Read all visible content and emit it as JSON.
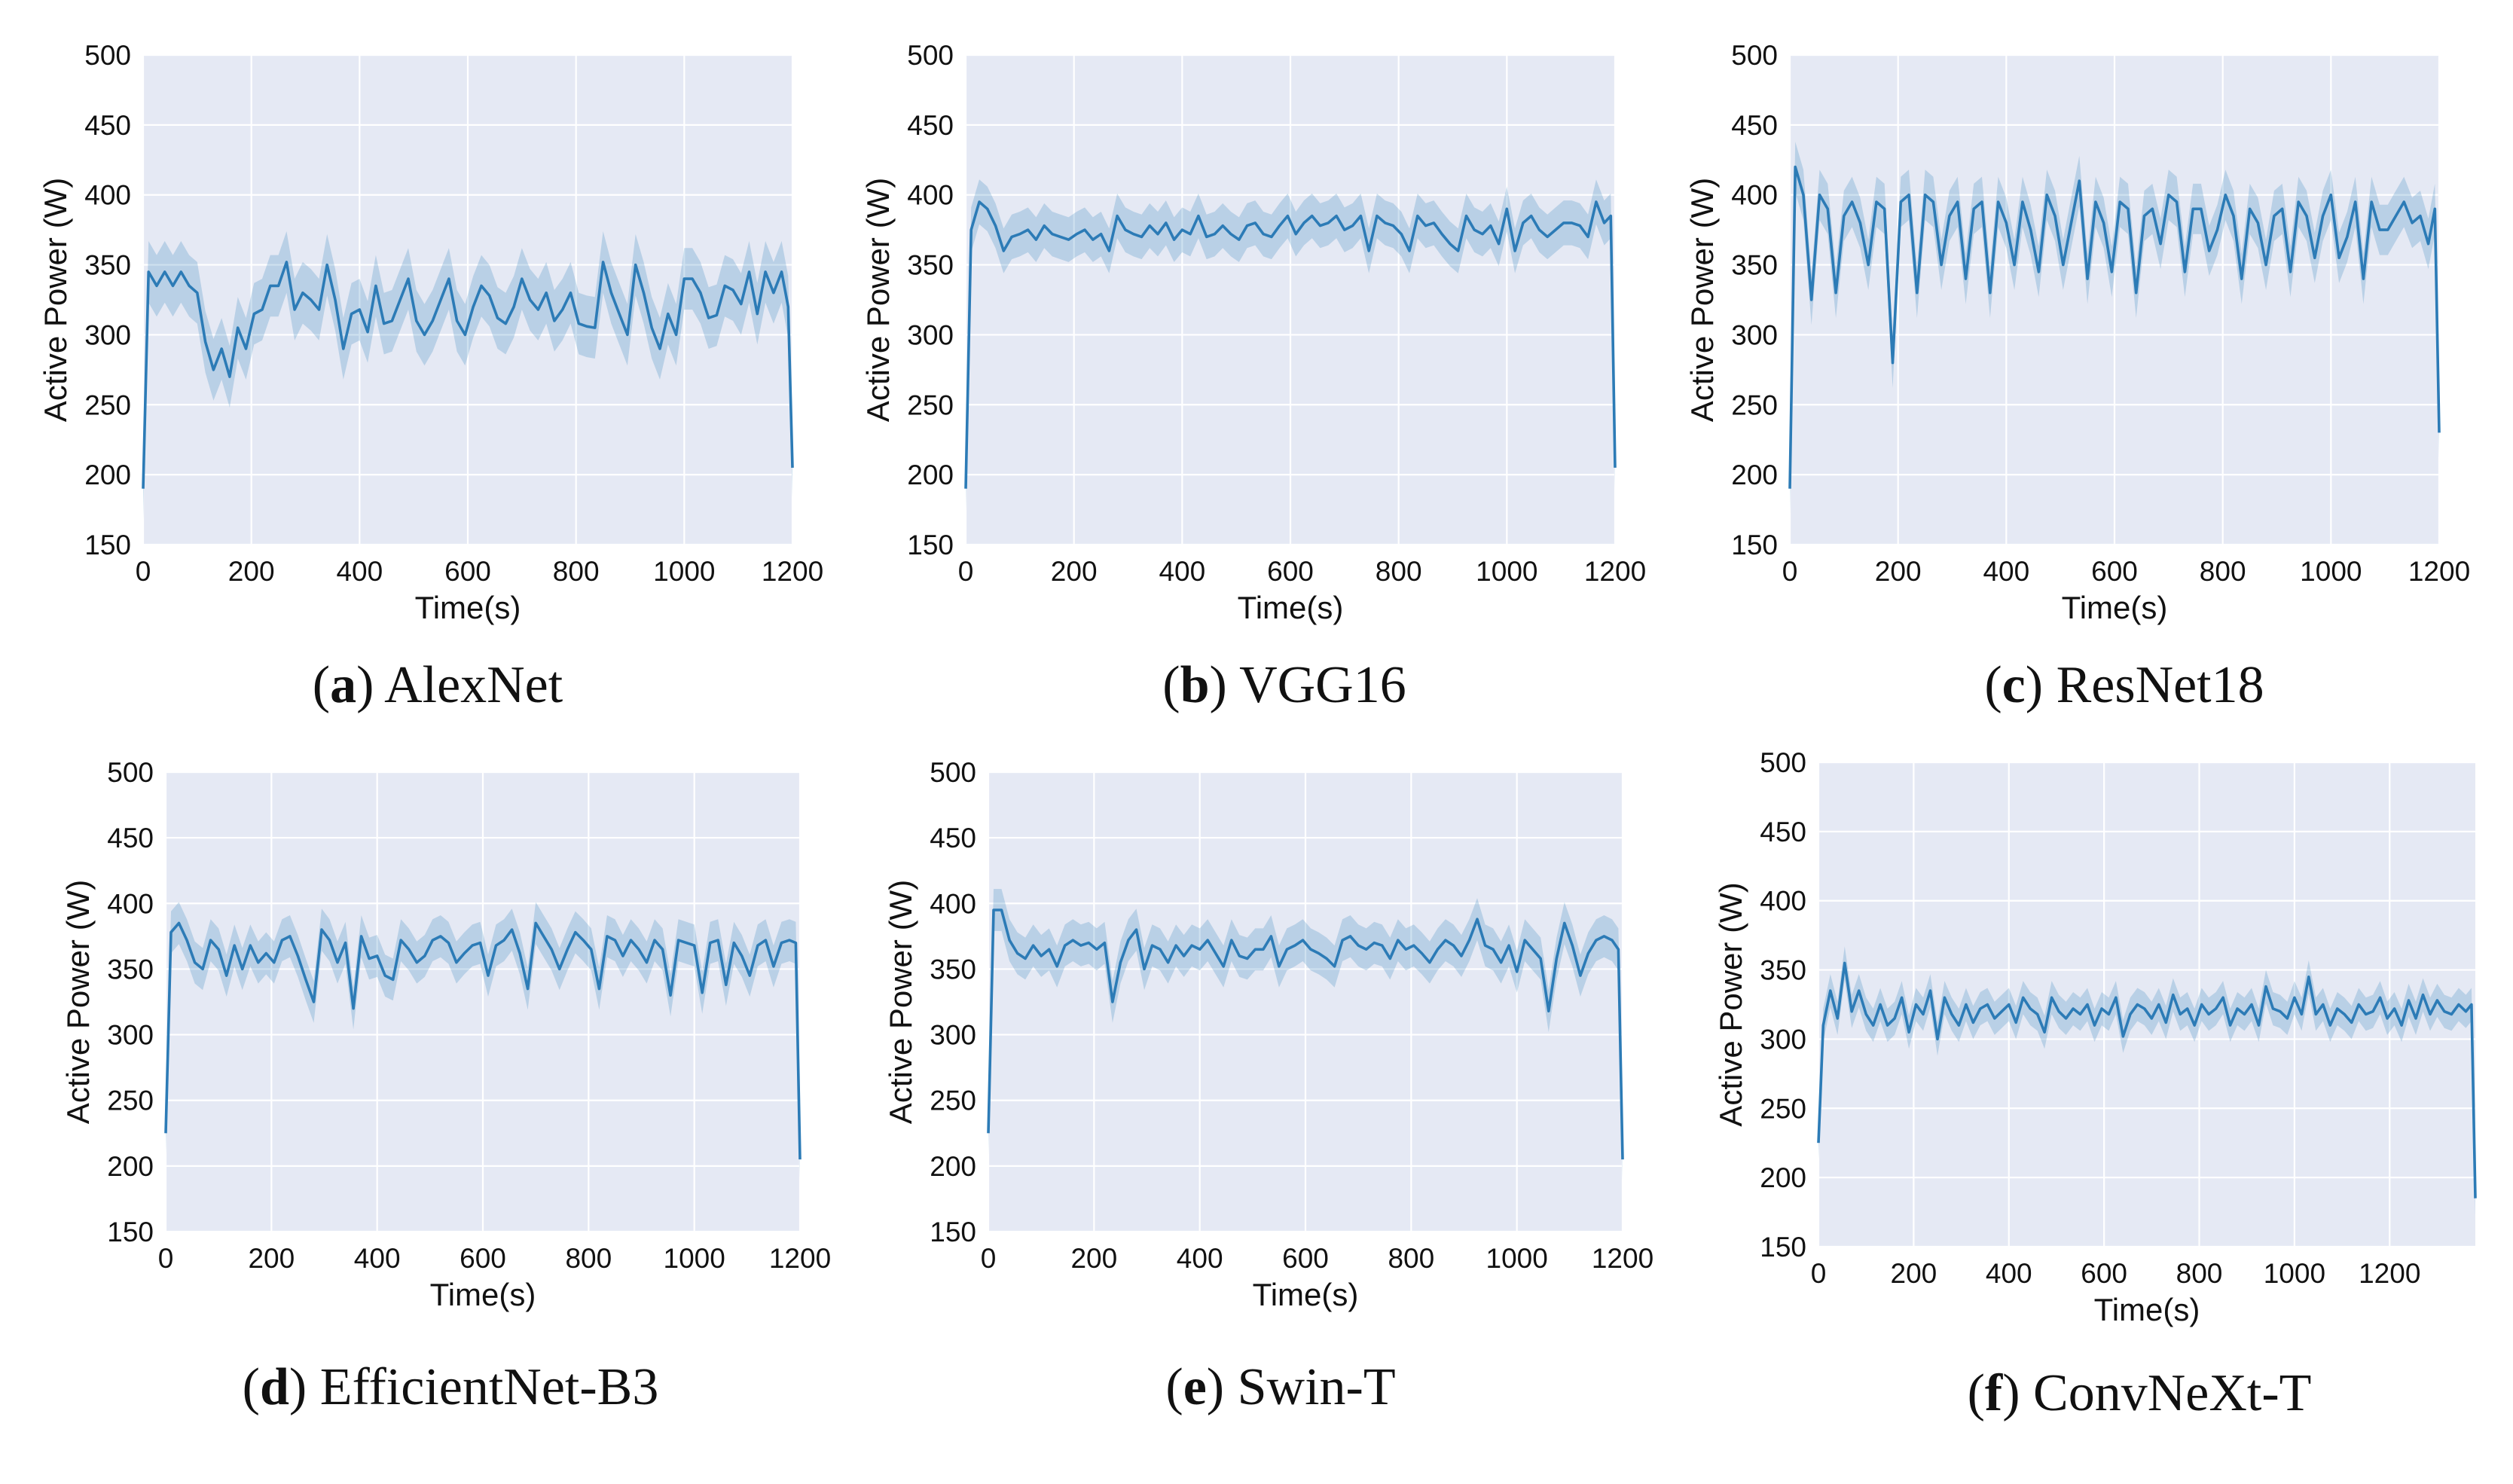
{
  "chart_data": [
    {
      "type": "line",
      "panel_letter": "a",
      "caption": "AlexNet",
      "xlabel": "Time(s)",
      "ylabel": "Active Power (W)",
      "xlim": [
        0,
        1200
      ],
      "ylim": [
        150,
        500
      ],
      "xticks": [
        0,
        200,
        400,
        600,
        800,
        1000,
        1200
      ],
      "yticks": [
        150,
        200,
        250,
        300,
        350,
        400,
        450,
        500
      ],
      "band_halfwidth": 22,
      "x": [
        0,
        10,
        25,
        40,
        55,
        70,
        85,
        100,
        115,
        130,
        145,
        160,
        175,
        190,
        205,
        220,
        235,
        250,
        265,
        280,
        295,
        310,
        325,
        340,
        355,
        370,
        385,
        400,
        415,
        430,
        445,
        460,
        475,
        490,
        505,
        520,
        535,
        550,
        565,
        580,
        595,
        610,
        625,
        640,
        655,
        670,
        685,
        700,
        715,
        730,
        745,
        760,
        775,
        790,
        805,
        820,
        835,
        850,
        865,
        880,
        895,
        910,
        925,
        940,
        955,
        970,
        985,
        1000,
        1015,
        1030,
        1045,
        1060,
        1075,
        1090,
        1105,
        1120,
        1135,
        1150,
        1165,
        1180,
        1192,
        1200
      ],
      "y": [
        190,
        345,
        335,
        345,
        335,
        345,
        335,
        330,
        295,
        275,
        290,
        270,
        305,
        290,
        315,
        318,
        335,
        335,
        352,
        318,
        330,
        325,
        318,
        350,
        325,
        290,
        315,
        318,
        302,
        335,
        308,
        310,
        325,
        340,
        310,
        300,
        310,
        325,
        340,
        310,
        300,
        320,
        335,
        328,
        312,
        308,
        320,
        340,
        325,
        318,
        330,
        310,
        318,
        330,
        308,
        306,
        305,
        352,
        330,
        315,
        300,
        350,
        330,
        305,
        290,
        315,
        300,
        340,
        340,
        330,
        312,
        314,
        335,
        332,
        322,
        345,
        315,
        345,
        330,
        345,
        320,
        205
      ]
    },
    {
      "type": "line",
      "panel_letter": "b",
      "caption": "VGG16",
      "xlabel": "Time(s)",
      "ylabel": "Active Power (W)",
      "xlim": [
        0,
        1200
      ],
      "ylim": [
        150,
        500
      ],
      "xticks": [
        0,
        200,
        400,
        600,
        800,
        1000,
        1200
      ],
      "yticks": [
        150,
        200,
        250,
        300,
        350,
        400,
        450,
        500
      ],
      "band_halfwidth": 16,
      "x": [
        0,
        10,
        25,
        40,
        55,
        70,
        85,
        100,
        115,
        130,
        145,
        160,
        175,
        190,
        205,
        220,
        235,
        250,
        265,
        280,
        295,
        310,
        325,
        340,
        355,
        370,
        385,
        400,
        415,
        430,
        445,
        460,
        475,
        490,
        505,
        520,
        535,
        550,
        565,
        580,
        595,
        610,
        625,
        640,
        655,
        670,
        685,
        700,
        715,
        730,
        745,
        760,
        775,
        790,
        805,
        820,
        835,
        850,
        865,
        880,
        895,
        910,
        925,
        940,
        955,
        970,
        985,
        1000,
        1015,
        1030,
        1045,
        1060,
        1075,
        1090,
        1105,
        1120,
        1135,
        1150,
        1165,
        1180,
        1192,
        1200
      ],
      "y": [
        190,
        375,
        395,
        390,
        378,
        360,
        370,
        372,
        375,
        368,
        378,
        372,
        370,
        368,
        372,
        375,
        368,
        372,
        360,
        385,
        375,
        372,
        370,
        378,
        372,
        380,
        368,
        375,
        372,
        385,
        370,
        372,
        378,
        372,
        368,
        378,
        380,
        372,
        370,
        378,
        385,
        372,
        380,
        385,
        378,
        380,
        385,
        375,
        378,
        385,
        360,
        385,
        380,
        378,
        372,
        360,
        385,
        378,
        380,
        372,
        365,
        360,
        385,
        375,
        372,
        378,
        365,
        390,
        360,
        380,
        385,
        375,
        370,
        375,
        380,
        380,
        378,
        370,
        395,
        380,
        385,
        205
      ]
    },
    {
      "type": "line",
      "panel_letter": "c",
      "caption": "ResNet18",
      "xlabel": "Time(s)",
      "ylabel": "Active Power (W)",
      "xlim": [
        0,
        1200
      ],
      "ylim": [
        150,
        500
      ],
      "xticks": [
        0,
        200,
        400,
        600,
        800,
        1000,
        1200
      ],
      "yticks": [
        150,
        200,
        250,
        300,
        350,
        400,
        450,
        500
      ],
      "band_halfwidth": 18,
      "x": [
        0,
        10,
        25,
        40,
        55,
        70,
        85,
        100,
        115,
        130,
        145,
        160,
        175,
        190,
        205,
        220,
        235,
        250,
        265,
        280,
        295,
        310,
        325,
        340,
        355,
        370,
        385,
        400,
        415,
        430,
        445,
        460,
        475,
        490,
        505,
        520,
        535,
        550,
        565,
        580,
        595,
        610,
        625,
        640,
        655,
        670,
        685,
        700,
        715,
        730,
        745,
        760,
        775,
        790,
        805,
        820,
        835,
        850,
        865,
        880,
        895,
        910,
        925,
        940,
        955,
        970,
        985,
        1000,
        1015,
        1030,
        1045,
        1060,
        1075,
        1090,
        1105,
        1120,
        1135,
        1150,
        1165,
        1180,
        1192,
        1200
      ],
      "y": [
        190,
        420,
        400,
        325,
        400,
        390,
        330,
        385,
        395,
        380,
        350,
        395,
        390,
        280,
        395,
        400,
        330,
        400,
        395,
        350,
        385,
        395,
        340,
        390,
        395,
        330,
        395,
        380,
        350,
        395,
        375,
        345,
        400,
        385,
        350,
        380,
        410,
        340,
        395,
        380,
        345,
        395,
        390,
        330,
        385,
        390,
        365,
        400,
        395,
        345,
        390,
        390,
        360,
        375,
        400,
        385,
        340,
        390,
        380,
        350,
        385,
        390,
        345,
        395,
        385,
        355,
        385,
        400,
        355,
        370,
        395,
        340,
        395,
        375,
        375,
        385,
        395,
        380,
        385,
        365,
        390,
        230
      ]
    },
    {
      "type": "line",
      "panel_letter": "d",
      "caption": "EfficientNet-B3",
      "xlabel": "Time(s)",
      "ylabel": "Active Power (W)",
      "xlim": [
        0,
        1200
      ],
      "ylim": [
        150,
        500
      ],
      "xticks": [
        0,
        200,
        400,
        600,
        800,
        1000,
        1200
      ],
      "yticks": [
        150,
        200,
        250,
        300,
        350,
        400,
        450,
        500
      ],
      "band_halfwidth": 16,
      "x": [
        0,
        10,
        25,
        40,
        55,
        70,
        85,
        100,
        115,
        130,
        145,
        160,
        175,
        190,
        205,
        220,
        235,
        250,
        265,
        280,
        295,
        310,
        325,
        340,
        355,
        370,
        385,
        400,
        415,
        430,
        445,
        460,
        475,
        490,
        505,
        520,
        535,
        550,
        565,
        580,
        595,
        610,
        625,
        640,
        655,
        670,
        685,
        700,
        715,
        730,
        745,
        760,
        775,
        790,
        805,
        820,
        835,
        850,
        865,
        880,
        895,
        910,
        925,
        940,
        955,
        970,
        985,
        1000,
        1015,
        1030,
        1045,
        1060,
        1075,
        1090,
        1105,
        1120,
        1135,
        1150,
        1165,
        1180,
        1192,
        1200
      ],
      "y": [
        225,
        378,
        385,
        372,
        355,
        350,
        372,
        365,
        345,
        368,
        350,
        368,
        355,
        362,
        355,
        372,
        375,
        360,
        342,
        325,
        380,
        372,
        355,
        370,
        320,
        375,
        358,
        360,
        345,
        342,
        372,
        365,
        355,
        360,
        372,
        375,
        370,
        355,
        362,
        368,
        370,
        345,
        368,
        372,
        380,
        362,
        335,
        385,
        375,
        365,
        350,
        365,
        378,
        372,
        365,
        335,
        375,
        372,
        360,
        372,
        365,
        355,
        372,
        365,
        330,
        372,
        370,
        368,
        332,
        370,
        372,
        338,
        370,
        360,
        345,
        368,
        372,
        352,
        370,
        372,
        370,
        205
      ]
    },
    {
      "type": "line",
      "panel_letter": "e",
      "caption": "Swin-T",
      "xlabel": "Time(s)",
      "ylabel": "Active Power (W)",
      "xlim": [
        0,
        1200
      ],
      "ylim": [
        150,
        500
      ],
      "xticks": [
        0,
        200,
        400,
        600,
        800,
        1000,
        1200
      ],
      "yticks": [
        150,
        200,
        250,
        300,
        350,
        400,
        450,
        500
      ],
      "band_halfwidth": 16,
      "x": [
        0,
        10,
        25,
        40,
        55,
        70,
        85,
        100,
        115,
        130,
        145,
        160,
        175,
        190,
        205,
        220,
        235,
        250,
        265,
        280,
        295,
        310,
        325,
        340,
        355,
        370,
        385,
        400,
        415,
        430,
        445,
        460,
        475,
        490,
        505,
        520,
        535,
        550,
        565,
        580,
        595,
        610,
        625,
        640,
        655,
        670,
        685,
        700,
        715,
        730,
        745,
        760,
        775,
        790,
        805,
        820,
        835,
        850,
        865,
        880,
        895,
        910,
        925,
        940,
        955,
        970,
        985,
        1000,
        1015,
        1030,
        1045,
        1060,
        1075,
        1090,
        1105,
        1120,
        1135,
        1150,
        1165,
        1180,
        1192,
        1200
      ],
      "y": [
        225,
        395,
        395,
        372,
        362,
        358,
        368,
        360,
        365,
        352,
        368,
        372,
        368,
        370,
        365,
        370,
        325,
        355,
        372,
        380,
        350,
        368,
        365,
        355,
        368,
        360,
        368,
        365,
        372,
        362,
        352,
        372,
        360,
        358,
        365,
        365,
        375,
        352,
        365,
        368,
        372,
        365,
        362,
        358,
        352,
        372,
        375,
        368,
        365,
        370,
        368,
        358,
        372,
        365,
        368,
        362,
        355,
        365,
        372,
        368,
        360,
        372,
        388,
        368,
        365,
        355,
        368,
        348,
        372,
        365,
        358,
        318,
        358,
        385,
        368,
        345,
        362,
        372,
        375,
        372,
        365,
        205
      ]
    },
    {
      "type": "line",
      "panel_letter": "f",
      "caption": "ConvNeXt-T",
      "xlabel": "Time(s)",
      "ylabel": "Active Power (W)",
      "xlim": [
        0,
        1380
      ],
      "ylim": [
        150,
        500
      ],
      "xticks": [
        0,
        200,
        400,
        600,
        800,
        1000,
        1200
      ],
      "yticks": [
        150,
        200,
        250,
        300,
        350,
        400,
        450,
        500
      ],
      "band_halfwidth": 12,
      "x": [
        0,
        10,
        25,
        40,
        55,
        70,
        85,
        100,
        115,
        130,
        145,
        160,
        175,
        190,
        205,
        220,
        235,
        250,
        265,
        280,
        295,
        310,
        325,
        340,
        355,
        370,
        385,
        400,
        415,
        430,
        445,
        460,
        475,
        490,
        505,
        520,
        535,
        550,
        565,
        580,
        595,
        610,
        625,
        640,
        655,
        670,
        685,
        700,
        715,
        730,
        745,
        760,
        775,
        790,
        805,
        820,
        835,
        850,
        865,
        880,
        895,
        910,
        925,
        940,
        955,
        970,
        985,
        1000,
        1015,
        1030,
        1045,
        1060,
        1075,
        1090,
        1105,
        1120,
        1135,
        1150,
        1165,
        1180,
        1195,
        1210,
        1225,
        1240,
        1255,
        1270,
        1285,
        1300,
        1315,
        1330,
        1345,
        1360,
        1372,
        1380
      ],
      "y": [
        225,
        310,
        335,
        315,
        355,
        320,
        335,
        318,
        310,
        325,
        310,
        315,
        330,
        305,
        325,
        318,
        335,
        300,
        330,
        318,
        310,
        325,
        312,
        322,
        325,
        315,
        320,
        325,
        312,
        330,
        322,
        318,
        305,
        330,
        320,
        315,
        322,
        318,
        325,
        310,
        322,
        318,
        330,
        302,
        318,
        325,
        322,
        315,
        325,
        312,
        332,
        318,
        322,
        310,
        325,
        318,
        322,
        330,
        310,
        322,
        318,
        325,
        310,
        338,
        322,
        320,
        315,
        330,
        318,
        345,
        318,
        325,
        310,
        322,
        318,
        312,
        325,
        318,
        320,
        330,
        315,
        322,
        310,
        328,
        315,
        332,
        318,
        328,
        320,
        318,
        325,
        320,
        325,
        185
      ]
    }
  ]
}
